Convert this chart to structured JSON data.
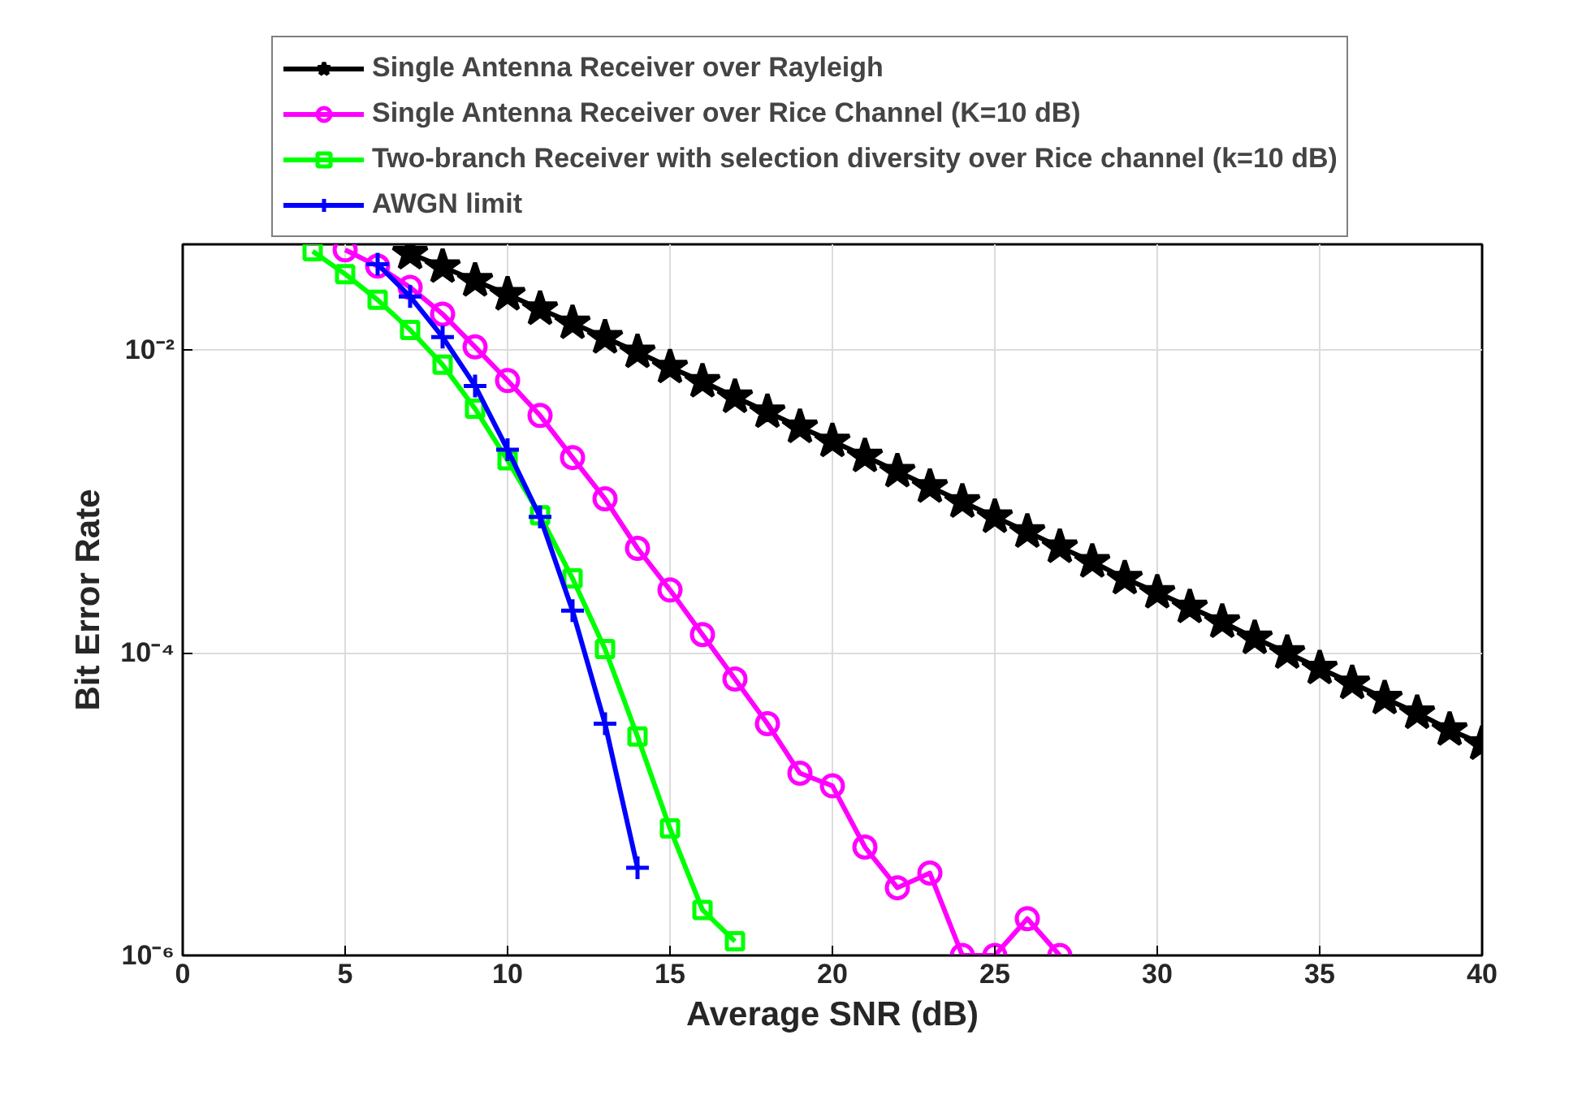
{
  "chart_data": {
    "type": "line",
    "xlabel": "Average SNR (dB)",
    "ylabel": "Bit Error Rate",
    "log": "y",
    "grid": true,
    "legend": "top",
    "line_style": "solid",
    "xlim": [
      0,
      40
    ],
    "xticks": [
      0,
      5,
      10,
      15,
      20,
      25,
      30,
      35,
      40
    ],
    "ylim": [
      1e-06,
      0.05
    ],
    "yticks": [
      {
        "value": 1e-06,
        "label": "10⁻⁶"
      },
      {
        "value": 0.0001,
        "label": "10⁻⁴"
      },
      {
        "value": 0.01,
        "label": "10⁻²"
      }
    ],
    "series": [
      {
        "name": "Single Antenna Receiver over Rayleigh",
        "color": "#000000",
        "marker": "star",
        "x": [
          7,
          8,
          9,
          10,
          11,
          12,
          13,
          14,
          15,
          16,
          17,
          18,
          19,
          20,
          21,
          22,
          23,
          24,
          25,
          26,
          27,
          28,
          29,
          30,
          31,
          32,
          33,
          34,
          35,
          36,
          37,
          38,
          39,
          40
        ],
        "values": [
          0.0435,
          0.0355,
          0.0288,
          0.0233,
          0.0187,
          0.0151,
          0.0121,
          0.0097,
          0.0077,
          0.0062,
          0.0049,
          0.0039,
          0.0031,
          0.0025,
          0.00199,
          0.00158,
          0.00125,
          0.000995,
          0.00079,
          0.00063,
          0.0005,
          0.0004,
          0.00031,
          0.00025,
          0.0002,
          0.00016,
          0.000125,
          0.0001,
          7.9e-05,
          6.3e-05,
          5e-05,
          4e-05,
          3.1e-05,
          2.5e-05
        ]
      },
      {
        "name": "Single Antenna Receiver over Rice Channel (K=10 dB)",
        "color": "#ff00ff",
        "marker": "circle",
        "x": [
          5,
          6,
          7,
          8,
          9,
          10,
          11,
          12,
          13,
          14,
          15,
          16,
          17,
          18,
          19,
          20,
          21,
          22,
          23,
          24,
          25,
          26,
          27
        ],
        "values": [
          0.046,
          0.0359,
          0.026,
          0.0173,
          0.0105,
          0.0063,
          0.0037,
          0.00195,
          0.00104,
          0.00049,
          0.00026,
          0.000132,
          6.7e-05,
          3.4e-05,
          1.6e-05,
          1.32e-05,
          5.2e-06,
          2.8e-06,
          3.5e-06,
          1e-06,
          1e-06,
          1.75e-06,
          1e-06
        ]
      },
      {
        "name": "Two-branch Receiver with selection diversity over Rice channel (k=10 dB)",
        "color": "#00ff00",
        "marker": "square",
        "x": [
          4,
          5,
          6,
          7,
          8,
          9,
          10,
          11,
          12,
          13,
          14,
          15,
          16,
          17
        ],
        "values": [
          0.045,
          0.0318,
          0.0215,
          0.0136,
          0.008,
          0.0041,
          0.00187,
          0.00081,
          0.00031,
          0.000106,
          2.8e-05,
          6.9e-06,
          2e-06,
          1.24e-06
        ]
      },
      {
        "name": "AWGN limit",
        "color": "#0000ff",
        "marker": "cross",
        "x": [
          6,
          7,
          8,
          9,
          10,
          11,
          12,
          13,
          14
        ],
        "values": [
          0.037,
          0.0226,
          0.0122,
          0.0058,
          0.0022,
          0.00079,
          0.00019,
          3.4e-05,
          3.8e-06
        ]
      }
    ]
  }
}
